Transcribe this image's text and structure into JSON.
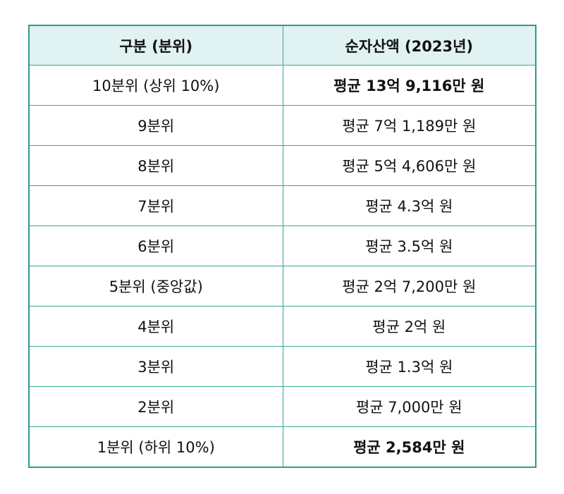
{
  "table": {
    "headers": [
      "구분 (분위)",
      "순자산액 (2023년)"
    ],
    "rows": [
      {
        "decile": "10분위 (상위 10%)",
        "net_assets": "평균 13억 9,116만 원",
        "bold": true
      },
      {
        "decile": "9분위",
        "net_assets": "평균 7억 1,189만 원",
        "bold": false
      },
      {
        "decile": "8분위",
        "net_assets": "평균 5억 4,606만 원",
        "bold": false
      },
      {
        "decile": "7분위",
        "net_assets": "평균 4.3억 원",
        "bold": false
      },
      {
        "decile": "6분위",
        "net_assets": "평균 3.5억 원",
        "bold": false
      },
      {
        "decile": "5분위 (중앙값)",
        "net_assets": "평균 2억 7,200만 원",
        "bold": false
      },
      {
        "decile": "4분위",
        "net_assets": "평균 2억 원",
        "bold": false
      },
      {
        "decile": "3분위",
        "net_assets": "평균 1.3억 원",
        "bold": false
      },
      {
        "decile": "2분위",
        "net_assets": "평균 7,000만 원",
        "bold": false
      },
      {
        "decile": "1분위 (하위 10%)",
        "net_assets": "평균 2,584만 원",
        "bold": true
      }
    ]
  },
  "colors": {
    "border": "#2e9a8c",
    "header_bg": "#e0f2f2",
    "text": "#111111"
  }
}
